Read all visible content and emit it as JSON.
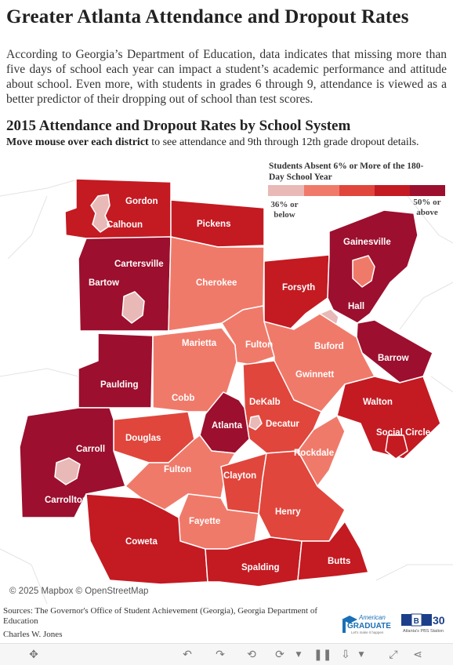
{
  "title": "Greater Atlanta Attendance and Dropout Rates",
  "intro": "According to Georgia’s Department of Education, data indicates that missing more than five days of school each year can impact a student’s academic performance and attitude about school. Even more, with students in grades 6 through 9, attendance is viewed as a better predictor of their dropping out of school than test scores.",
  "subtitle": "2015 Attendance and Dropout Rates by School System",
  "instruction_bold": "Move mouse over each district",
  "instruction_rest": " to see attendance and 9th through 12th grade dropout details.",
  "legend": {
    "title": "Students Absent 6% or More of the 180-Day School Year",
    "low_label": "36% or below",
    "high_label": "50% or above",
    "colors": [
      "#e8b9b6",
      "#f07a6a",
      "#e0463c",
      "#c41a22",
      "#9c0f2e"
    ]
  },
  "districts": [
    {
      "name": "Gordon",
      "class": 4
    },
    {
      "name": "Calhoun",
      "class": 4
    },
    {
      "name": "Pickens",
      "class": 4
    },
    {
      "name": "Gainesville",
      "class": 5
    },
    {
      "name": "Cartersville",
      "class": 5
    },
    {
      "name": "Bartow",
      "class": 5
    },
    {
      "name": "Cherokee",
      "class": 2
    },
    {
      "name": "Forsyth",
      "class": 4
    },
    {
      "name": "Hall",
      "class": 5
    },
    {
      "name": "Marietta",
      "class": 2
    },
    {
      "name": "Fulton",
      "class": 2
    },
    {
      "name": "Buford",
      "class": 1
    },
    {
      "name": "Barrow",
      "class": 5
    },
    {
      "name": "Gwinnett",
      "class": 2
    },
    {
      "name": "Paulding",
      "class": 5
    },
    {
      "name": "Cobb",
      "class": 2
    },
    {
      "name": "DeKalb",
      "class": 3
    },
    {
      "name": "Walton",
      "class": 4
    },
    {
      "name": "Atlanta",
      "class": 5
    },
    {
      "name": "Decatur",
      "class": 1
    },
    {
      "name": "Douglas",
      "class": 3
    },
    {
      "name": "Social Circle",
      "class": 4
    },
    {
      "name": "Carroll",
      "class": 5
    },
    {
      "name": "Carrollton",
      "class": 5
    },
    {
      "name": "Rockdale",
      "class": 2
    },
    {
      "name": "Clayton",
      "class": 3
    },
    {
      "name": "Henry",
      "class": 3
    },
    {
      "name": "Fayette",
      "class": 2
    },
    {
      "name": "Coweta",
      "class": 4
    },
    {
      "name": "Spalding",
      "class": 4
    },
    {
      "name": "Butts",
      "class": 4
    }
  ],
  "attribution": "© 2025 Mapbox  © OpenStreetMap",
  "sources_text": "Sources: The Governor's Office of Student Achievement (Georgia), Georgia Department of Education",
  "author": "Charles W. Jones",
  "logos": {
    "american_graduate_top": "American",
    "american_graduate_main": "GRADUATE",
    "american_graduate_tag": "Let's make it happen",
    "pba_letters": "PBA",
    "pba_number": "30",
    "pba_tag": "Atlanta's PBS Station"
  },
  "toolbar_icons": [
    "move-icon",
    "undo-icon",
    "redo-icon",
    "revert-icon",
    "refresh-icon",
    "pause-icon",
    "download-icon",
    "share-icon"
  ]
}
